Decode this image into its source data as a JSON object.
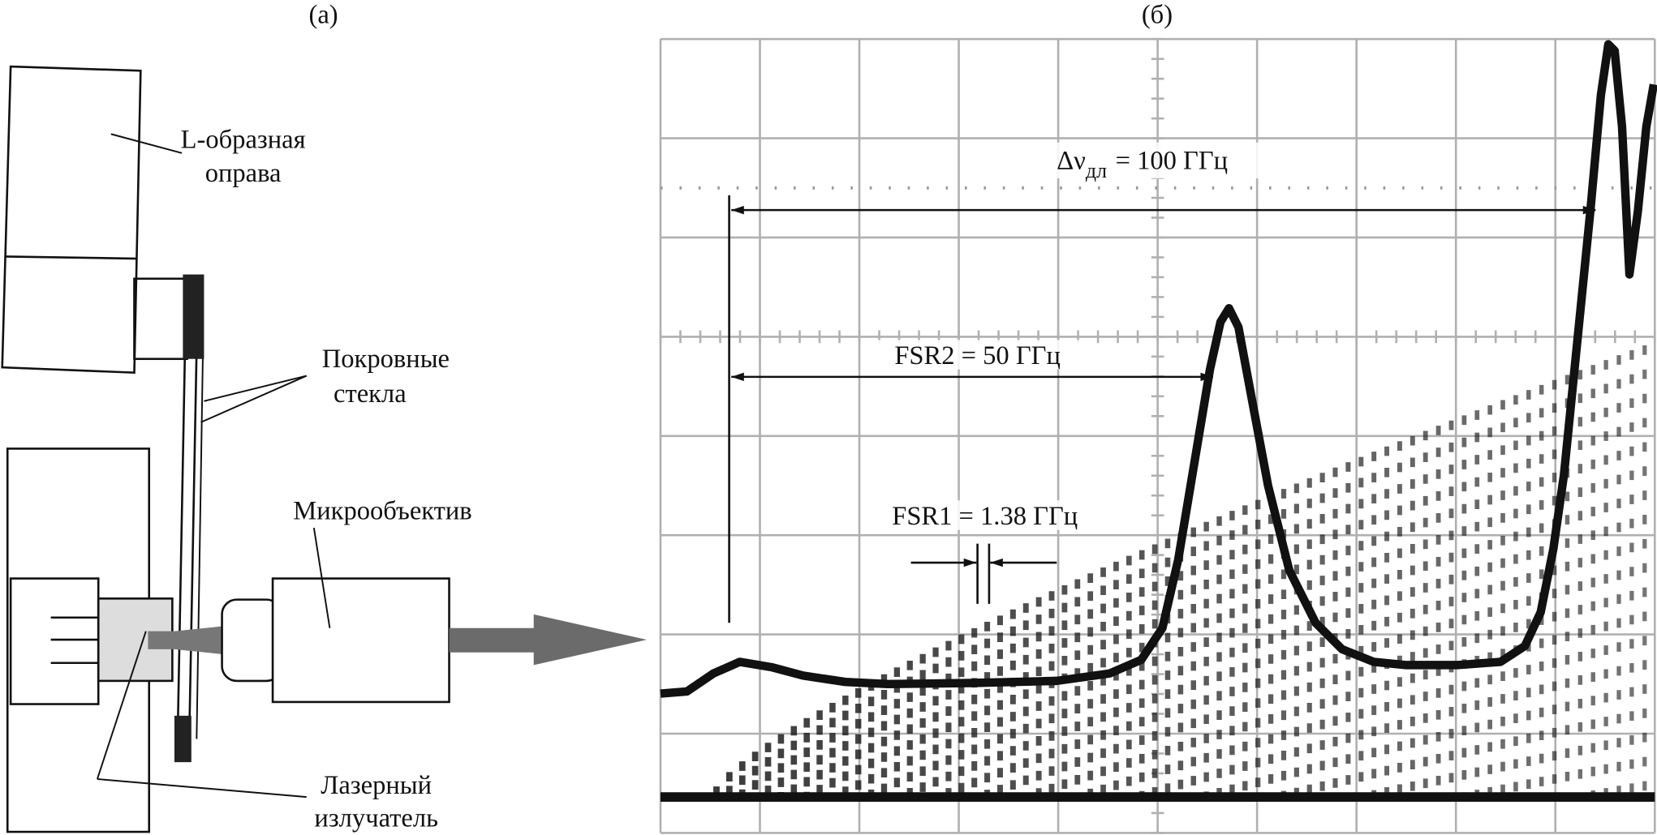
{
  "panel_a": {
    "label": "(а)",
    "mount": [
      "L-образная",
      "оправа"
    ],
    "cover_glass": [
      "Покровные",
      "стекла"
    ],
    "objective": "Микрообъектив",
    "laser": [
      "Лазерный",
      "излучатель"
    ]
  },
  "panel_b": {
    "label": "(б)",
    "linewidth": {
      "symbol": "Δν",
      "subscript": "дл",
      "value": "= 100 ГГц"
    },
    "fsr2": "FSR2 = 50 ГГц",
    "fsr1": "FSR1 = 1.38 ГГц"
  }
}
